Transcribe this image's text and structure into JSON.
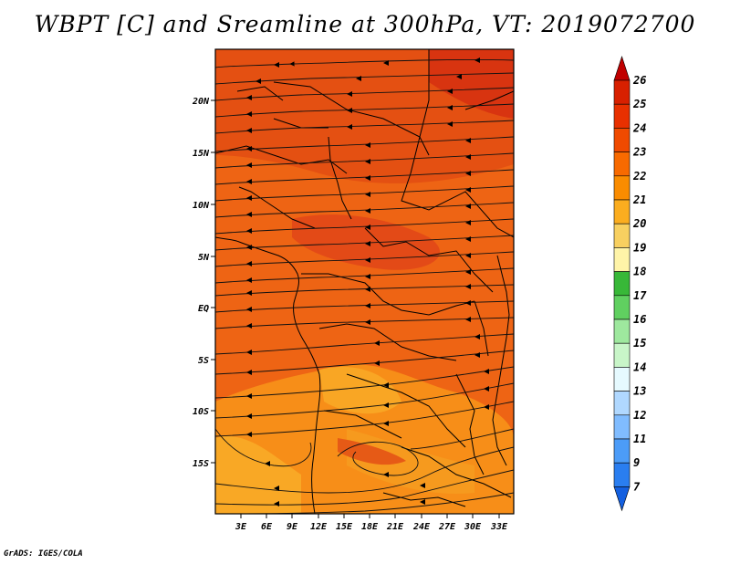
{
  "title": "WBPT [C] and Sreamline at 300hPa, VT: 2019072700",
  "credit": "GrADS: IGES/COLA",
  "lat_labels": [
    "20N",
    "15N",
    "10N",
    "5N",
    "EQ",
    "5S",
    "10S",
    "15S"
  ],
  "lon_labels": [
    "3E",
    "6E",
    "9E",
    "12E",
    "15E",
    "18E",
    "21E",
    "24E",
    "27E",
    "30E",
    "33E"
  ],
  "colorbar": {
    "labels": [
      "26",
      "25",
      "24",
      "23",
      "22",
      "21",
      "20",
      "19",
      "18",
      "17",
      "16",
      "15",
      "14",
      "13",
      "12",
      "11",
      "9",
      "7"
    ],
    "colors": [
      "#c00000",
      "#d82000",
      "#e83000",
      "#f04a00",
      "#f86a00",
      "#fa8c00",
      "#fbad1f",
      "#f8d060",
      "#fff4a8",
      "#38b838",
      "#60d060",
      "#9ee89e",
      "#c8f5c8",
      "#e6faff",
      "#b0d8ff",
      "#80bcff",
      "#4c9cf8",
      "#2a7ef0",
      "#1460e0"
    ]
  },
  "map": {
    "fill_colors": {
      "deep_red": "#e04010",
      "red": "#ea5214",
      "orange_red": "#f06a10",
      "orange": "#f68010",
      "yellow_orange": "#f9a020"
    }
  }
}
